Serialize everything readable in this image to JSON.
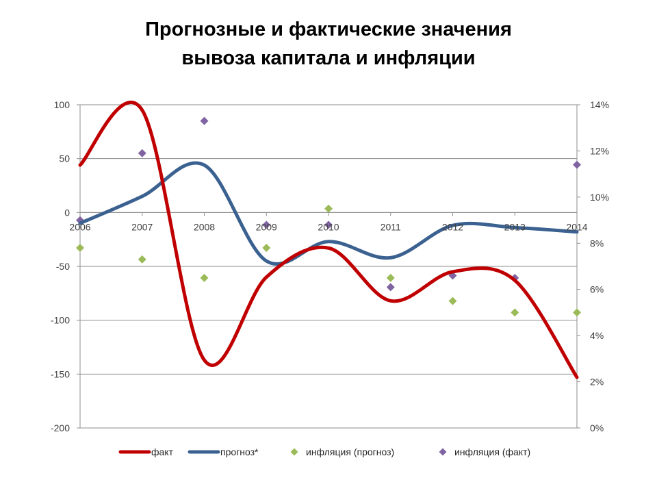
{
  "title": {
    "line1": "Прогнозные и фактические значения",
    "line2": "вывоза капитала и инфляции"
  },
  "chart_data": {
    "type": "line",
    "title": "Прогнозные и фактические значения вывоза капитала и инфляции",
    "categories": [
      "2006",
      "2007",
      "2008",
      "2009",
      "2010",
      "2011",
      "2012",
      "2013",
      "2014"
    ],
    "y_left": {
      "ylim": [
        -200,
        100
      ],
      "ticks": [
        "100",
        "50",
        "0",
        "-50",
        "-100",
        "-150",
        "-200"
      ]
    },
    "y_right": {
      "ylim": [
        0,
        14
      ],
      "ticks": [
        "14%",
        "12%",
        "10%",
        "8%",
        "6%",
        "4%",
        "2%",
        "0%"
      ]
    },
    "grid": true,
    "legend_position": "bottom",
    "series": [
      {
        "name": "факт",
        "axis": "left",
        "style": "smooth-line",
        "color": "#C00000",
        "values": [
          44,
          95,
          -137,
          -60,
          -33,
          -82,
          -55,
          -63,
          -153
        ]
      },
      {
        "name": "прогноз*",
        "axis": "left",
        "style": "smooth-line",
        "color": "#3A6190",
        "values": [
          -10,
          15,
          44,
          -45,
          -27,
          -42,
          -12,
          -14,
          -18
        ]
      },
      {
        "name": "инфляция (прогноз)",
        "axis": "right",
        "style": "marker",
        "color": "#9BBB59",
        "values": [
          7.8,
          7.3,
          6.5,
          7.8,
          9.5,
          6.5,
          5.5,
          5.0,
          5.0
        ]
      },
      {
        "name": "инфляция (факт)",
        "axis": "right",
        "style": "marker",
        "color": "#8064A2",
        "values": [
          9.0,
          11.9,
          13.3,
          8.8,
          8.8,
          6.1,
          6.6,
          6.5,
          11.4
        ]
      }
    ]
  }
}
